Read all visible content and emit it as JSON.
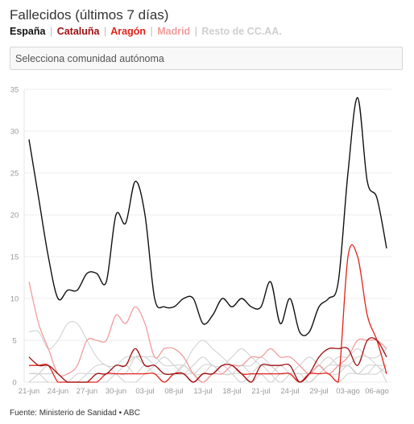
{
  "title": "Fallecidos (últimos 7 días)",
  "legend": {
    "separator": "|"
  },
  "selector": {
    "placeholder": "Selecciona comunidad autónoma"
  },
  "source": "Fuente: Ministerio de Sanidad • ABC",
  "chart_data": {
    "type": "line",
    "title": "Fallecidos (últimos 7 días)",
    "xlabel": "",
    "ylabel": "",
    "ylim": [
      0,
      35
    ],
    "yticks": [
      0,
      5,
      10,
      15,
      20,
      25,
      30,
      35
    ],
    "grid": "horizontal",
    "legend_position": "top",
    "categories": [
      "21-jun",
      "",
      "",
      "24-jun",
      "",
      "",
      "27-jun",
      "",
      "",
      "30-jun",
      "",
      "",
      "03-jul",
      "",
      "",
      "08-jul",
      "",
      "",
      "13-jul",
      "",
      "",
      "18-jul",
      "",
      "",
      "21-jul",
      "",
      "",
      "24-jul",
      "",
      "",
      "29-jul",
      "",
      "",
      "03-ago",
      "",
      "",
      "06-ago",
      ""
    ],
    "series": [
      {
        "name": "España",
        "color": "#111111",
        "values": [
          29,
          22,
          15,
          10,
          11,
          11,
          13,
          13,
          12,
          20,
          19,
          24,
          20,
          10,
          9,
          9,
          10,
          10,
          7,
          8,
          10,
          9,
          10,
          9,
          9,
          12,
          7,
          10,
          6,
          6,
          9,
          10,
          12,
          25,
          34,
          24,
          22,
          16
        ]
      },
      {
        "name": "Cataluña",
        "color": "#9e1010",
        "values": [
          3,
          2,
          2,
          1,
          0,
          0,
          0,
          1,
          1,
          2,
          2,
          4,
          2,
          2,
          1,
          1,
          1,
          0,
          1,
          1,
          2,
          2,
          1,
          0,
          2,
          2,
          2,
          2,
          0,
          1,
          3,
          4,
          4,
          4,
          2,
          5,
          5,
          3
        ]
      },
      {
        "name": "Aragón",
        "color": "#e2231a",
        "values": [
          2,
          2,
          2,
          0,
          0,
          0,
          0,
          0,
          1,
          1,
          1,
          1,
          1,
          1,
          0,
          1,
          1,
          0,
          1,
          1,
          2,
          2,
          1,
          1,
          1,
          1,
          1,
          1,
          0,
          1,
          1,
          1,
          0,
          15,
          15,
          8,
          5,
          1
        ]
      },
      {
        "name": "Madrid",
        "color": "#f29c9c",
        "values": [
          12,
          7,
          4,
          1,
          1,
          2,
          5,
          5,
          5,
          8,
          7,
          9,
          7,
          3,
          4,
          4,
          3,
          1,
          0,
          1,
          1,
          2,
          2,
          3,
          3,
          4,
          3,
          3,
          2,
          1,
          2,
          1,
          2,
          3,
          5,
          5,
          5,
          4
        ]
      },
      {
        "name": "Resto de CC.AA.",
        "color": "#d3d3d3",
        "lines": [
          [
            6,
            6,
            4,
            5,
            7,
            7,
            5,
            3,
            2,
            2,
            3,
            3,
            3,
            2,
            1,
            1,
            2,
            4,
            5,
            4,
            3,
            2,
            2,
            2,
            3,
            2,
            1,
            1,
            0,
            1,
            2,
            3,
            2,
            2,
            3,
            3,
            2,
            1
          ],
          [
            1,
            1,
            1,
            1,
            0,
            0,
            0,
            1,
            1,
            2,
            2,
            3,
            2,
            2,
            1,
            1,
            1,
            2,
            3,
            2,
            2,
            3,
            4,
            3,
            2,
            2,
            1,
            1,
            0,
            0,
            1,
            2,
            3,
            3,
            4,
            3,
            3,
            4
          ],
          [
            1,
            1,
            0,
            0,
            0,
            1,
            1,
            1,
            1,
            1,
            2,
            1,
            2,
            1,
            1,
            1,
            2,
            1,
            2,
            2,
            1,
            1,
            1,
            0,
            1,
            1,
            2,
            1,
            1,
            0,
            1,
            2,
            2,
            2,
            1,
            2,
            2,
            2
          ],
          [
            0,
            0,
            0,
            0,
            0,
            0,
            0,
            0,
            0,
            1,
            1,
            3,
            3,
            3,
            2,
            2,
            2,
            1,
            1,
            2,
            1,
            1,
            2,
            1,
            1,
            0,
            1,
            1,
            1,
            1,
            1,
            1,
            0,
            1,
            1,
            1,
            2,
            0
          ],
          [
            0,
            1,
            2,
            1,
            0,
            0,
            1,
            2,
            2,
            1,
            0,
            0,
            1,
            2,
            3,
            2,
            1,
            1,
            0,
            1,
            2,
            1,
            0,
            1,
            2,
            1,
            0,
            1,
            2,
            3,
            2,
            1,
            1,
            2,
            1,
            1,
            1,
            2
          ]
        ]
      }
    ]
  }
}
